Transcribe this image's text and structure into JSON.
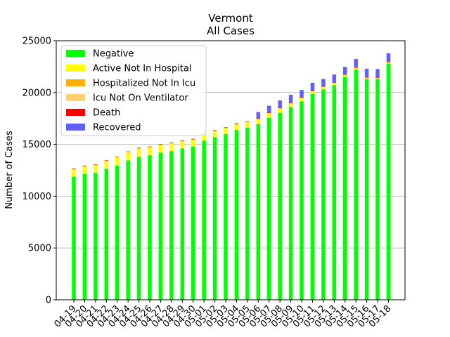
{
  "chart_data": {
    "type": "bar",
    "stacked": true,
    "title": "Vermont",
    "subtitle": "All Cases",
    "xlabel": "",
    "ylabel": "Number of Cases",
    "ylim": [
      0,
      25000
    ],
    "yticks": [
      0,
      5000,
      10000,
      15000,
      20000,
      25000
    ],
    "grid": "y",
    "legend_position": "top-left",
    "categories": [
      "04-19",
      "04-20",
      "04-21",
      "04-22",
      "04-23",
      "04-24",
      "04-25",
      "04-26",
      "04-27",
      "04-28",
      "04-29",
      "04-30",
      "05-01",
      "05-02",
      "05-03",
      "05-04",
      "05-05",
      "05-06",
      "05-07",
      "05-08",
      "05-09",
      "05-10",
      "05-11",
      "05-12",
      "05-13",
      "05-14",
      "05-15",
      "05-16",
      "05-17",
      "05-18"
    ],
    "series": [
      {
        "name": "Negative",
        "color": "#00ff00",
        "values": [
          11900,
          12150,
          12250,
          12650,
          12950,
          13450,
          13800,
          13950,
          14200,
          14350,
          14600,
          14800,
          15350,
          15700,
          16000,
          16400,
          16600,
          16950,
          17550,
          18050,
          18600,
          19150,
          19850,
          20300,
          20700,
          21500,
          22200,
          21300,
          21300,
          22800
        ]
      },
      {
        "name": "Active Not In Hospital",
        "color": "#ffff00",
        "values": [
          700,
          730,
          760,
          750,
          780,
          790,
          780,
          760,
          750,
          720,
          700,
          650,
          600,
          580,
          560,
          540,
          520,
          480,
          440,
          400,
          350,
          300,
          250,
          220,
          200,
          180,
          150,
          100,
          80,
          100
        ]
      },
      {
        "name": "Hospitalized Not In Icu",
        "color": "#ffb000",
        "values": [
          25,
          25,
          25,
          25,
          25,
          25,
          25,
          25,
          25,
          25,
          25,
          25,
          25,
          25,
          25,
          25,
          25,
          25,
          25,
          25,
          25,
          25,
          25,
          25,
          25,
          25,
          25,
          25,
          25,
          25
        ]
      },
      {
        "name": "Icu Not On Ventilator",
        "color": "#ffd070",
        "values": [
          10,
          10,
          10,
          10,
          10,
          10,
          10,
          10,
          10,
          10,
          10,
          10,
          10,
          10,
          10,
          10,
          10,
          10,
          10,
          10,
          10,
          10,
          10,
          10,
          10,
          10,
          10,
          10,
          10,
          10
        ]
      },
      {
        "name": "Death",
        "color": "#ff0000",
        "values": [
          40,
          40,
          40,
          40,
          40,
          45,
          45,
          47,
          48,
          50,
          50,
          50,
          52,
          52,
          52,
          52,
          52,
          53,
          53,
          53,
          53,
          53,
          53,
          54,
          54,
          54,
          54,
          54,
          54,
          54
        ]
      },
      {
        "name": "Recovered",
        "color": "#6060ff",
        "values": [
          0,
          0,
          0,
          0,
          0,
          0,
          0,
          0,
          0,
          0,
          0,
          0,
          0,
          0,
          0,
          0,
          0,
          600,
          650,
          700,
          750,
          700,
          750,
          700,
          750,
          700,
          800,
          800,
          800,
          800
        ]
      }
    ]
  }
}
